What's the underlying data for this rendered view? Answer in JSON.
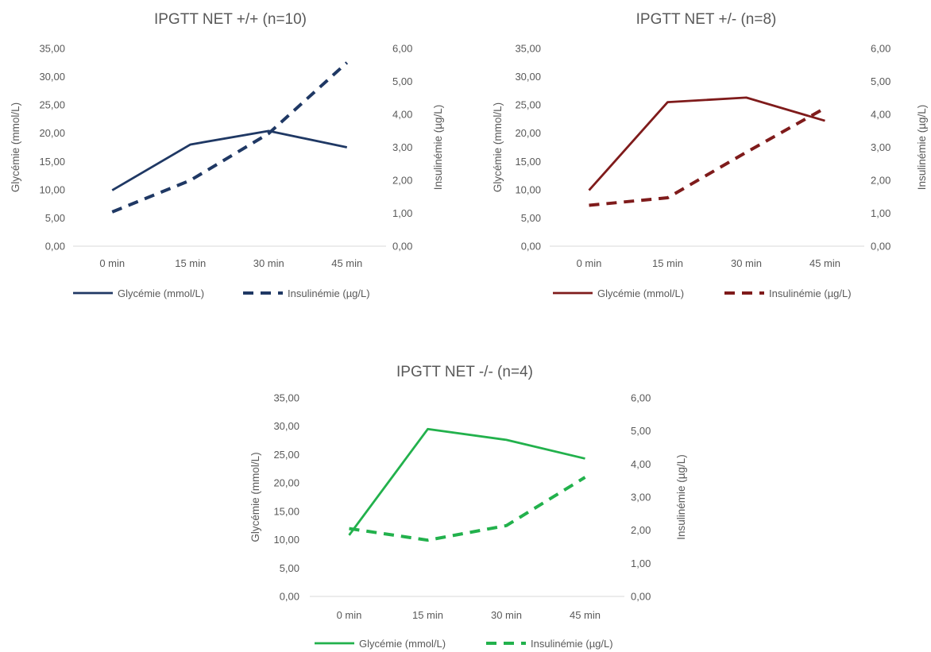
{
  "chart_data": [
    {
      "type": "line",
      "title": "IPGTT NET +/+ (n=10)",
      "categories": [
        "0 min",
        "15 min",
        "30 min",
        "45 min"
      ],
      "ylabel": "Glycémie (mmol/L)",
      "y2label": "Insulinémie (µg/L)",
      "ylim": [
        0,
        35
      ],
      "y2lim": [
        0,
        6
      ],
      "yticks": [
        "0,00",
        "5,00",
        "10,00",
        "15,00",
        "20,00",
        "25,00",
        "30,00",
        "35,00"
      ],
      "y2ticks": [
        "0,00",
        "1,00",
        "2,00",
        "3,00",
        "4,00",
        "5,00",
        "6,00"
      ],
      "legend_position": "bottom",
      "series": [
        {
          "name": "Glycémie (mmol/L)",
          "axis": "left",
          "style": "solid",
          "color": "#1f3864",
          "values": [
            9.9,
            18.0,
            20.4,
            17.5
          ]
        },
        {
          "name": "Insulinémie (µg/L)",
          "axis": "right",
          "style": "dashed",
          "color": "#1f3864",
          "values": [
            1.04,
            2.0,
            3.42,
            5.57
          ]
        }
      ]
    },
    {
      "type": "line",
      "title": "IPGTT NET +/- (n=8)",
      "categories": [
        "0 min",
        "15 min",
        "30 min",
        "45 min"
      ],
      "ylabel": "Glycémie (mmol/L)",
      "y2label": "Insulinémie (µg/L)",
      "ylim": [
        0,
        35
      ],
      "y2lim": [
        0,
        6
      ],
      "yticks": [
        "0,00",
        "5,00",
        "10,00",
        "15,00",
        "20,00",
        "25,00",
        "30,00",
        "35,00"
      ],
      "y2ticks": [
        "0,00",
        "1,00",
        "2,00",
        "3,00",
        "4,00",
        "5,00",
        "6,00"
      ],
      "legend_position": "bottom",
      "series": [
        {
          "name": "Glycémie (mmol/L)",
          "axis": "left",
          "style": "solid",
          "color": "#7f1b1b",
          "values": [
            9.9,
            25.5,
            26.3,
            22.2
          ]
        },
        {
          "name": "Insulinémie (µg/L)",
          "axis": "right",
          "style": "dashed",
          "color": "#7f1b1b",
          "values": [
            1.24,
            1.47,
            2.85,
            4.19
          ]
        }
      ]
    },
    {
      "type": "line",
      "title": "IPGTT NET -/- (n=4)",
      "categories": [
        "0 min",
        "15 min",
        "30 min",
        "45 min"
      ],
      "ylabel": "Glycémie (mmol/L)",
      "y2label": "Insulinémie (µg/L)",
      "ylim": [
        0,
        35
      ],
      "y2lim": [
        0,
        6
      ],
      "yticks": [
        "0,00",
        "5,00",
        "10,00",
        "15,00",
        "20,00",
        "25,00",
        "30,00",
        "35,00"
      ],
      "y2ticks": [
        "0,00",
        "1,00",
        "2,00",
        "3,00",
        "4,00",
        "5,00",
        "6,00"
      ],
      "legend_position": "bottom",
      "series": [
        {
          "name": "Glycémie (mmol/L)",
          "axis": "left",
          "style": "solid",
          "color": "#22b14c",
          "values": [
            10.8,
            29.5,
            27.6,
            24.3
          ]
        },
        {
          "name": "Insulinémie (µg/L)",
          "axis": "right",
          "style": "dashed",
          "color": "#22b14c",
          "values": [
            2.05,
            1.7,
            2.14,
            3.6
          ]
        }
      ]
    }
  ]
}
